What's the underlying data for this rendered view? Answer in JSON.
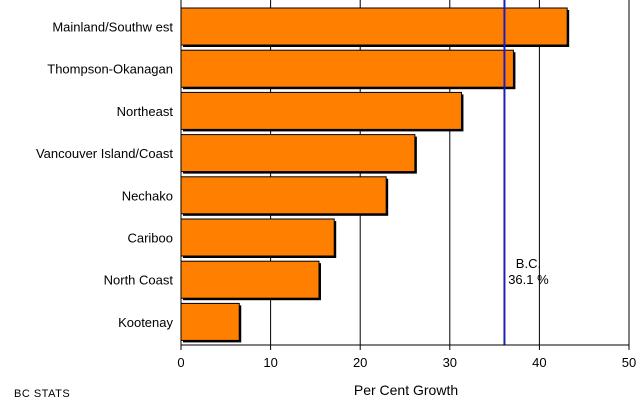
{
  "chart_data": {
    "type": "bar",
    "orientation": "horizontal",
    "categories": [
      "Mainland/Southw est",
      "Thompson-Okanagan",
      "Northeast",
      "Vancouver Island/Coast",
      "Nechako",
      "Cariboo",
      "North Coast",
      "Kootenay"
    ],
    "values": [
      43.1,
      37.1,
      31.3,
      26.1,
      22.9,
      17.1,
      15.4,
      6.5
    ],
    "title": "",
    "xlabel": "Per Cent Growth",
    "ylabel": "",
    "xlim": [
      0,
      50
    ],
    "xticks": [
      "0",
      "10",
      "20",
      "30",
      "40",
      "50"
    ],
    "bar_color": "#FF8000",
    "grid": "vertical",
    "reference_line": {
      "value": 36.1,
      "label_line1": "B.C.",
      "label_line2": "36.1 %",
      "color": "#1F1FB8"
    }
  },
  "source": "BC STATS"
}
